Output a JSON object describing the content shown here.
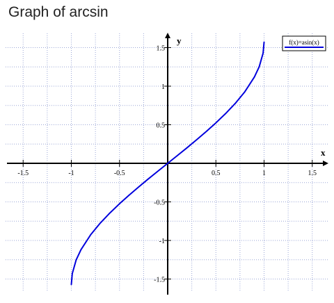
{
  "page": {
    "heading": "Graph of arcsin"
  },
  "chart_data": {
    "type": "line",
    "title": "",
    "xlabel": "x",
    "ylabel": "y",
    "xlim": [
      -1.75,
      1.75
    ],
    "ylim": [
      -1.65,
      1.65
    ],
    "x_ticks": [
      -1.5,
      -1,
      -0.5,
      0.5,
      1,
      1.5
    ],
    "x_tick_labels": [
      "-1.5",
      "-1",
      "-0.5",
      "0.5",
      "1",
      "1.5"
    ],
    "y_ticks": [
      -1.5,
      -1,
      -0.5,
      0.5,
      1,
      1.5
    ],
    "y_tick_labels": [
      "-1.5",
      "-1",
      "-0.5",
      "0.5",
      "1",
      "1.5"
    ],
    "grid": true,
    "legend": "top-right",
    "series": [
      {
        "name": "f(x)=asin(x)",
        "color": "#0000dd",
        "x": [
          -1,
          -0.99,
          -0.95,
          -0.9,
          -0.8,
          -0.7,
          -0.6,
          -0.5,
          -0.4,
          -0.3,
          -0.2,
          -0.1,
          0,
          0.1,
          0.2,
          0.3,
          0.4,
          0.5,
          0.6,
          0.7,
          0.8,
          0.9,
          0.95,
          0.99,
          1
        ],
        "y": [
          -1.571,
          -1.429,
          -1.253,
          -1.12,
          -0.927,
          -0.775,
          -0.644,
          -0.524,
          -0.412,
          -0.305,
          -0.201,
          -0.1,
          0,
          0.1,
          0.201,
          0.305,
          0.412,
          0.524,
          0.644,
          0.775,
          0.927,
          1.12,
          1.253,
          1.429,
          1.571
        ]
      }
    ]
  }
}
